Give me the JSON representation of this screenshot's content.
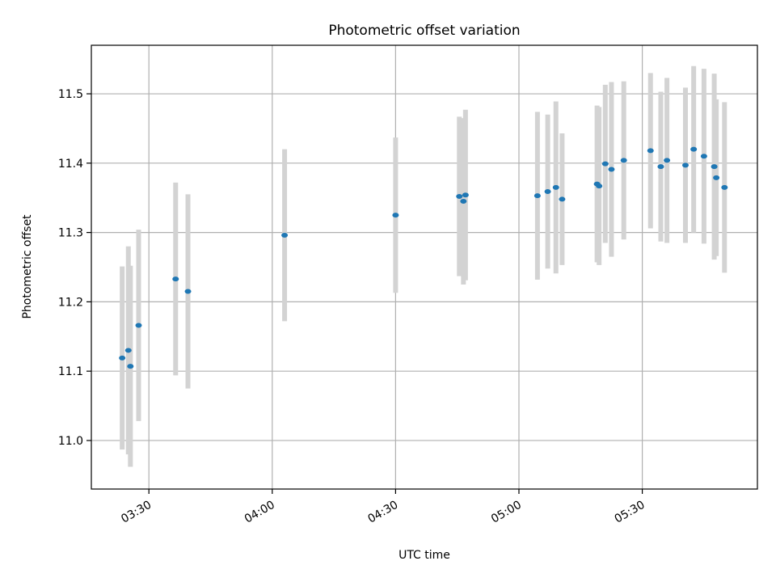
{
  "chart_data": {
    "type": "scatter",
    "title": "Photometric offset variation",
    "xlabel": "UTC time",
    "ylabel": "Photometric offset",
    "x_ticks": [
      "03:30",
      "04:00",
      "04:30",
      "05:00",
      "05:30"
    ],
    "y_ticks": [
      "11.0",
      "11.1",
      "11.2",
      "11.3",
      "11.4",
      "11.5"
    ],
    "xlim": [
      "03:16",
      "05:58"
    ],
    "ylim": [
      10.93,
      11.57
    ],
    "grid": true,
    "colors": {
      "point": "#1f77b4",
      "errorbar": "#d3d3d3",
      "grid": "#b0b0b0"
    },
    "points": [
      {
        "x": "03:23:30",
        "y": 11.119,
        "yerr": 0.132
      },
      {
        "x": "03:25:00",
        "y": 11.13,
        "yerr": 0.15
      },
      {
        "x": "03:25:30",
        "y": 11.107,
        "yerr": 0.145
      },
      {
        "x": "03:27:30",
        "y": 11.166,
        "yerr": 0.138
      },
      {
        "x": "03:36:30",
        "y": 11.233,
        "yerr": 0.139
      },
      {
        "x": "03:39:30",
        "y": 11.215,
        "yerr": 0.14
      },
      {
        "x": "04:03:00",
        "y": 11.296,
        "yerr": 0.124
      },
      {
        "x": "04:30:00",
        "y": 11.325,
        "yerr": 0.112
      },
      {
        "x": "04:45:30",
        "y": 11.352,
        "yerr": 0.115
      },
      {
        "x": "04:46:30",
        "y": 11.345,
        "yerr": 0.12
      },
      {
        "x": "04:47:00",
        "y": 11.354,
        "yerr": 0.123
      },
      {
        "x": "05:04:30",
        "y": 11.353,
        "yerr": 0.121
      },
      {
        "x": "05:07:00",
        "y": 11.359,
        "yerr": 0.111
      },
      {
        "x": "05:09:00",
        "y": 11.365,
        "yerr": 0.124
      },
      {
        "x": "05:10:30",
        "y": 11.348,
        "yerr": 0.095
      },
      {
        "x": "05:19:00",
        "y": 11.37,
        "yerr": 0.113
      },
      {
        "x": "05:19:30",
        "y": 11.367,
        "yerr": 0.114
      },
      {
        "x": "05:21:00",
        "y": 11.399,
        "yerr": 0.114
      },
      {
        "x": "05:22:30",
        "y": 11.391,
        "yerr": 0.126
      },
      {
        "x": "05:25:30",
        "y": 11.404,
        "yerr": 0.114
      },
      {
        "x": "05:32:00",
        "y": 11.418,
        "yerr": 0.112
      },
      {
        "x": "05:34:30",
        "y": 11.395,
        "yerr": 0.108
      },
      {
        "x": "05:36:00",
        "y": 11.404,
        "yerr": 0.119
      },
      {
        "x": "05:40:30",
        "y": 11.397,
        "yerr": 0.112
      },
      {
        "x": "05:42:30",
        "y": 11.42,
        "yerr": 0.12
      },
      {
        "x": "05:45:00",
        "y": 11.41,
        "yerr": 0.126
      },
      {
        "x": "05:47:30",
        "y": 11.395,
        "yerr": 0.134
      },
      {
        "x": "05:48:00",
        "y": 11.379,
        "yerr": 0.113
      },
      {
        "x": "05:50:00",
        "y": 11.365,
        "yerr": 0.123
      }
    ]
  }
}
